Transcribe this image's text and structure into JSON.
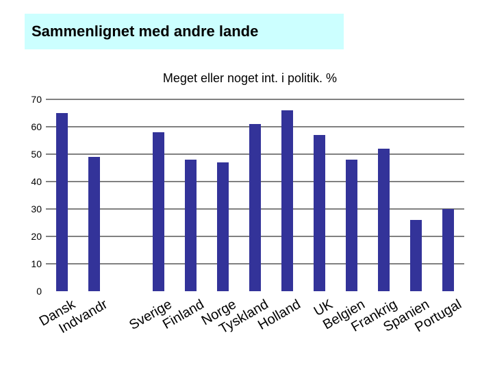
{
  "slide": {
    "title": "Sammenlignet med andre lande"
  },
  "chart_data": {
    "type": "bar",
    "title": "Meget eller noget int. i politik. %",
    "xlabel": "",
    "ylabel": "",
    "ylim": [
      0,
      70
    ],
    "yticks": [
      0,
      10,
      20,
      30,
      40,
      50,
      60,
      70
    ],
    "grid": true,
    "legend": "none",
    "colors": {
      "bar": "#333399",
      "grid": "#000000",
      "title_bg": "#ccffff"
    },
    "categories": [
      "Dansk",
      "Indvandr",
      "",
      "Sverige",
      "Finland",
      "Norge",
      "Tyskland",
      "Holland",
      "UK",
      "Belgien",
      "Frankrig",
      "Spanien",
      "Portugal"
    ],
    "values": [
      65,
      49,
      null,
      58,
      48,
      47,
      61,
      66,
      57,
      48,
      52,
      26,
      30
    ]
  }
}
